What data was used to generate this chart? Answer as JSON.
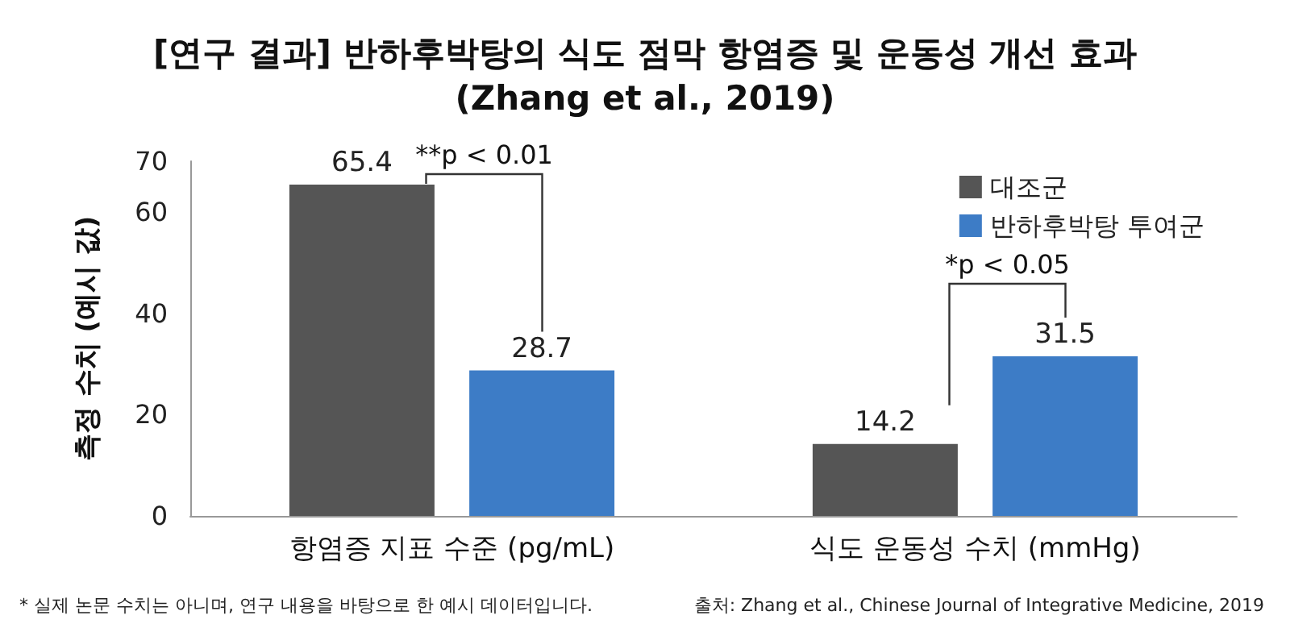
{
  "chart_data": {
    "type": "bar",
    "title": "[연구 결과] 반하후박탕의 식도 점막 항염증 및 운동성 개선 효과\n(Zhang et al., 2019)",
    "ylabel": "측정 수치 (예시 값)",
    "categories": [
      "항염증 지표 수준 (pg/mL)",
      "식도 운동성 수치 (mmHg)"
    ],
    "series": [
      {
        "name": "대조군",
        "color": "#555555",
        "values": [
          65.4,
          14.2
        ]
      },
      {
        "name": "반하후박탕 투여군",
        "color": "#3d7cc6",
        "values": [
          28.7,
          31.5
        ]
      }
    ],
    "ylim": [
      0,
      70
    ],
    "yticks": [
      0,
      20,
      40,
      60,
      70
    ],
    "data_labels": true,
    "legend": "top right",
    "grid": false,
    "annotations": [
      "**p < 0.01",
      "*p < 0.05",
      "* 실제 논문 수치는 아니며, 연구 내용을 바탕으로 한 예시 데이터입니다.",
      "출처: Zhang et al., Chinese Journal of Integrative Medicine, 2019"
    ]
  }
}
